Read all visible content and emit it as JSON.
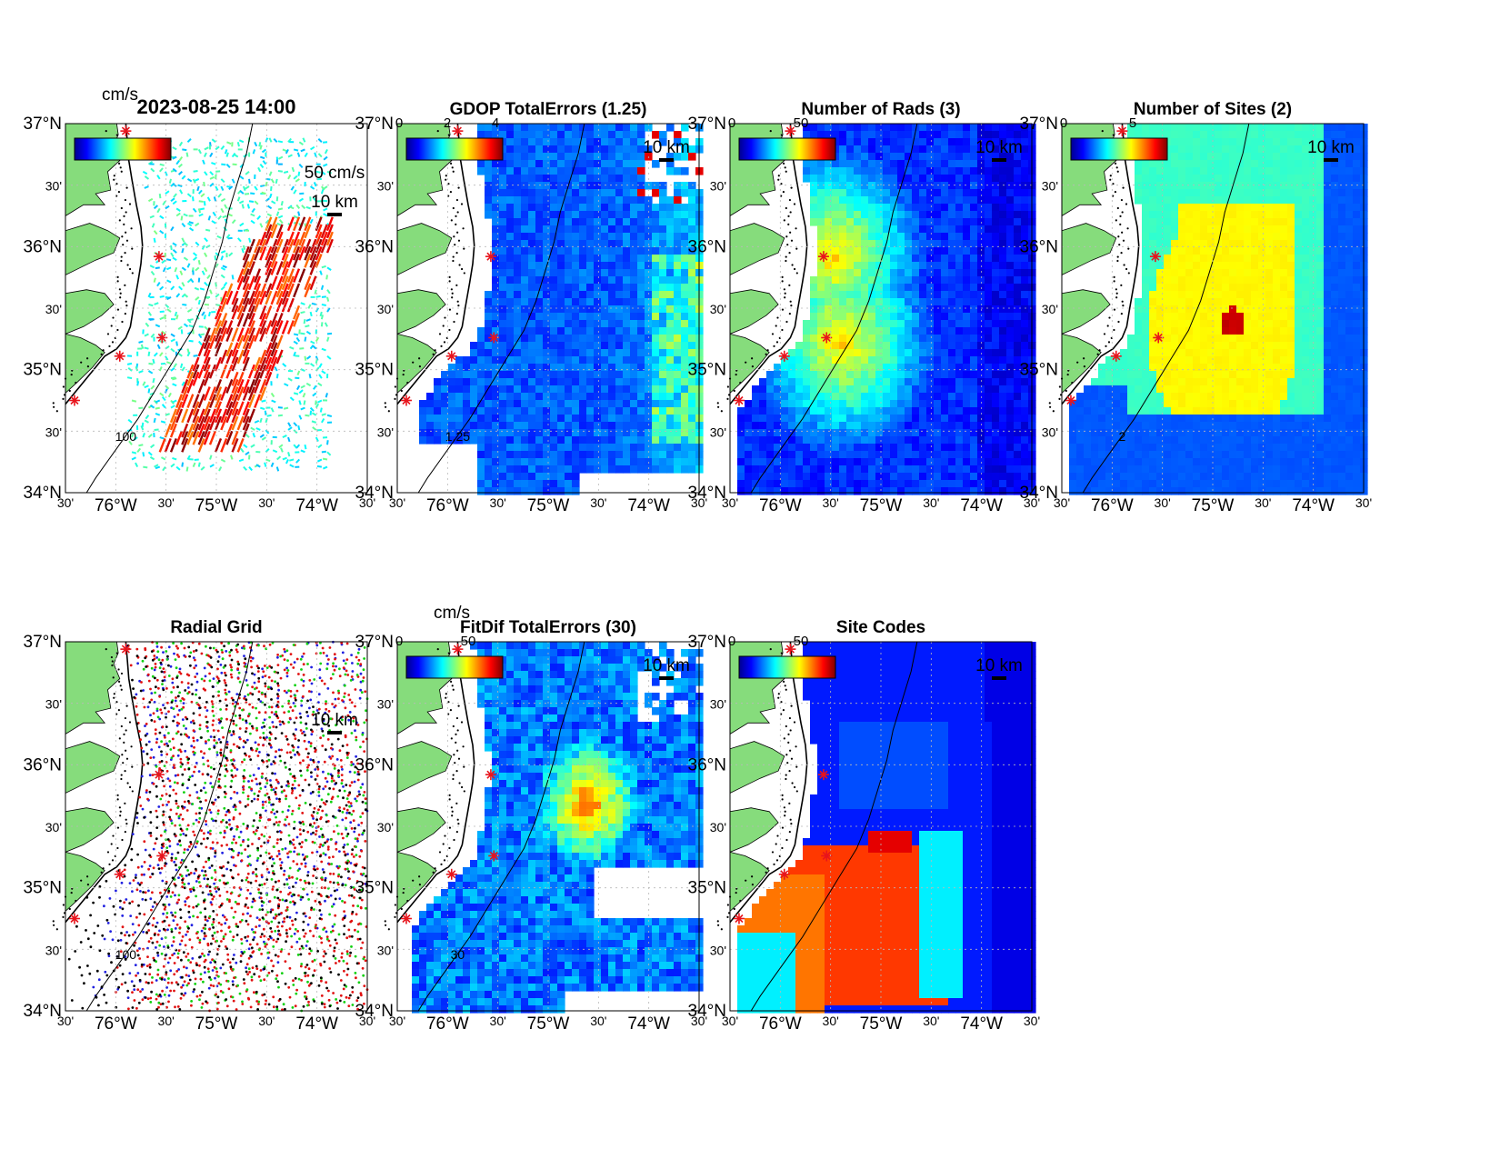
{
  "figure": {
    "timestamp": "2023-08-25 14:00",
    "panels": [
      {
        "id": "currents",
        "title": "",
        "units": "cm/s",
        "cbar_ticks": [],
        "scale_label": "50 cm/s",
        "km_label": "10 km",
        "contour_label": "100"
      },
      {
        "id": "gdop",
        "title": "GDOP TotalErrors (1.25)",
        "units": "",
        "cbar_ticks": [
          "0",
          "2",
          "4"
        ],
        "km_label": "10 km",
        "contour_label": "1.25"
      },
      {
        "id": "rads",
        "title": "Number of Rads (3)",
        "units": "",
        "cbar_ticks": [
          "0",
          "50"
        ],
        "km_label": "10 km",
        "contour_label": ""
      },
      {
        "id": "sites",
        "title": "Number of Sites (2)",
        "units": "",
        "cbar_ticks": [
          "0",
          "5"
        ],
        "km_label": "10 km",
        "contour_label": "2"
      },
      {
        "id": "radial",
        "title": "Radial Grid",
        "units": "",
        "cbar_ticks": [],
        "km_label": "10 km",
        "contour_label": "100"
      },
      {
        "id": "fitdif",
        "title": "FitDif TotalErrors (30)",
        "units": "cm/s",
        "cbar_ticks": [
          "0",
          "50"
        ],
        "km_label": "10 km",
        "contour_label": "30"
      },
      {
        "id": "codes",
        "title": "Site Codes",
        "units": "",
        "cbar_ticks": [
          "0",
          "50"
        ],
        "km_label": "10 km",
        "contour_label": ""
      }
    ],
    "lat_ticks": [
      "37°N",
      "30'",
      "36°N",
      "30'",
      "35°N",
      "30'",
      "34°N"
    ],
    "lon_ticks": [
      "30'",
      "76°W",
      "30'",
      "75°W",
      "30'",
      "74°W",
      "30'"
    ],
    "colors": {
      "land": "#86dc7c",
      "site_marker": "#e8141c",
      "grid": "#b8b8b8"
    }
  }
}
